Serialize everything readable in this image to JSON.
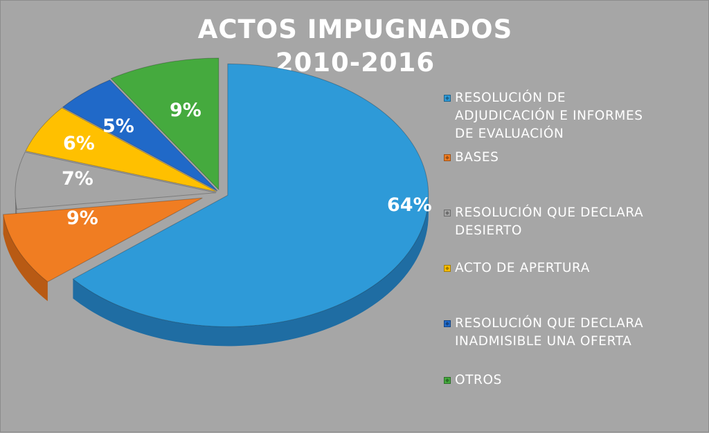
{
  "chart_data": {
    "type": "pie",
    "title": "ACTOS IMPUGNADOS 2010-2016",
    "title_lines": [
      "ACTOS IMPUGNADOS",
      "2010-2016"
    ],
    "categories": [
      "RESOLUCIÓN DE ADJUDICACIÓN E INFORMES DE EVALUACIÓN",
      "BASES",
      "RESOLUCIÓN QUE DECLARA DESIERTO",
      "ACTO DE APERTURA",
      "RESOLUCIÓN QUE DECLARA INADMISIBLE UNA OFERTA",
      "OTROS"
    ],
    "values": [
      64,
      9,
      7,
      6,
      5,
      9
    ],
    "data_labels": [
      "64%",
      "9%",
      "7%",
      "6%",
      "5%",
      "9%"
    ],
    "colors": [
      "#2e9ad8",
      "#f07d22",
      "#a5a5a5",
      "#ffc000",
      "#2069c8",
      "#45aa3e"
    ],
    "side_colors": [
      "#1f6da3",
      "#b85a14",
      "#7a7a7a",
      "#c99700",
      "#174c93",
      "#2f7c2b"
    ],
    "legend": {
      "position": "right",
      "items": [
        {
          "lines": [
            "RESOLUCIÓN DE",
            "ADJUDICACIÓN E INFORMES",
            "DE EVALUACIÓN"
          ]
        },
        {
          "lines": [
            "BASES"
          ]
        },
        {
          "lines": [
            "RESOLUCIÓN QUE DECLARA",
            "DESIERTO"
          ]
        },
        {
          "lines": [
            "ACTO DE APERTURA"
          ]
        },
        {
          "lines": [
            "RESOLUCIÓN QUE DECLARA",
            "INADMISIBLE UNA OFERTA"
          ]
        },
        {
          "lines": [
            "OTROS"
          ]
        }
      ]
    },
    "style": "3d-pie-exploded",
    "background": "#a6a6a6"
  }
}
